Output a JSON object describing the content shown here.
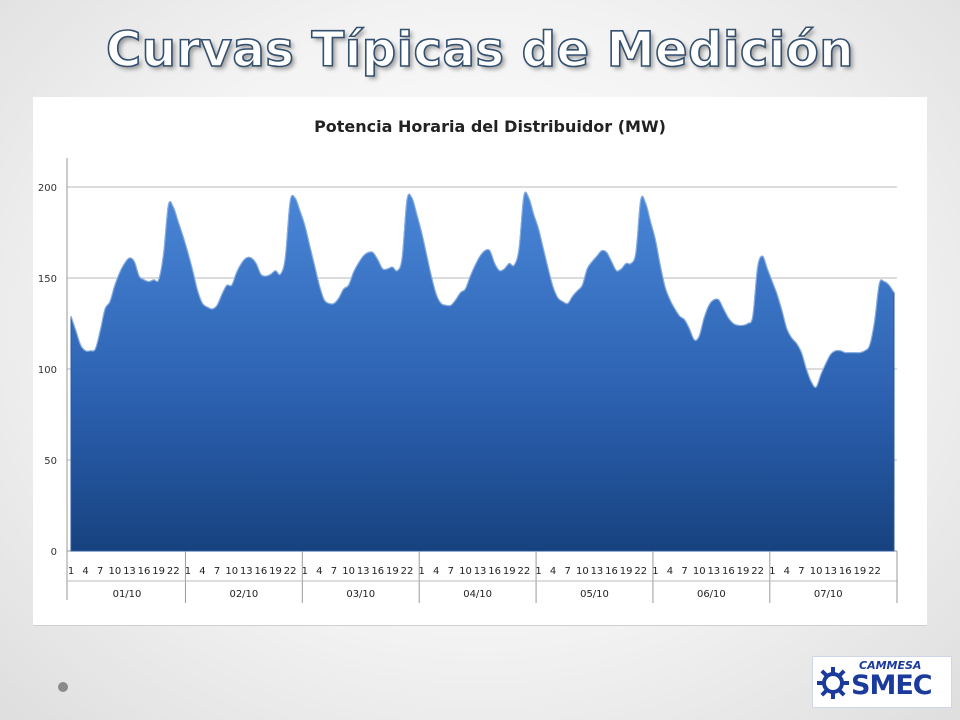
{
  "slide": {
    "title": "Curvas Típicas de Medición"
  },
  "logo": {
    "top_text": "CAMMESA",
    "main_text": "SMEC"
  },
  "colors": {
    "area_fill_top": "#3f7ad0",
    "area_fill_bottom": "#16427f",
    "title_stroke": "#34506f",
    "logo_blue": "#1a3a9c"
  },
  "chart_data": {
    "type": "area",
    "title": "Potencia Horaria del Distribuidor (MW)",
    "xlabel": "",
    "ylabel": "",
    "ylim": [
      0,
      200
    ],
    "y_ticks": [
      0,
      50,
      100,
      150,
      200
    ],
    "grid": true,
    "legend": "none",
    "hour_tick_labels": [
      "1",
      "4",
      "7",
      "10",
      "13",
      "16",
      "19",
      "22"
    ],
    "days": [
      "01/10",
      "02/10",
      "03/10",
      "04/10",
      "05/10",
      "06/10",
      "07/10"
    ],
    "series": [
      {
        "values": [
          129,
          121,
          113,
          110,
          110,
          111,
          121,
          133,
          137,
          146,
          153,
          158,
          161,
          159,
          151,
          149,
          148,
          149,
          149,
          163,
          190,
          189,
          181,
          173,
          164,
          154,
          143,
          136,
          134,
          133,
          135,
          141,
          146,
          146,
          153,
          158,
          161,
          161,
          158,
          152,
          151,
          152,
          154,
          152,
          161,
          192,
          194,
          187,
          179,
          168,
          157,
          146,
          138,
          136,
          136,
          139,
          144,
          146,
          153,
          158,
          162,
          164,
          164,
          160,
          155,
          155,
          156,
          154,
          161,
          193,
          194,
          185,
          175,
          163,
          151,
          141,
          136,
          135,
          135,
          138,
          142,
          144,
          151,
          157,
          162,
          165,
          165,
          158,
          154,
          155,
          158,
          157,
          166,
          195,
          194,
          185,
          177,
          166,
          155,
          145,
          139,
          137,
          136,
          140,
          143,
          146,
          155,
          159,
          162,
          165,
          164,
          159,
          154,
          155,
          158,
          158,
          164,
          193,
          191,
          181,
          171,
          157,
          145,
          138,
          133,
          129,
          127,
          122,
          116,
          118,
          128,
          135,
          138,
          138,
          133,
          128,
          125,
          124,
          124,
          125,
          129,
          156,
          162,
          155,
          148,
          141,
          132,
          122,
          117,
          114,
          109,
          100,
          93,
          90,
          97,
          103,
          108,
          110,
          110,
          109,
          109,
          109,
          109,
          110,
          113,
          126,
          147,
          148,
          146,
          142
        ]
      }
    ]
  }
}
